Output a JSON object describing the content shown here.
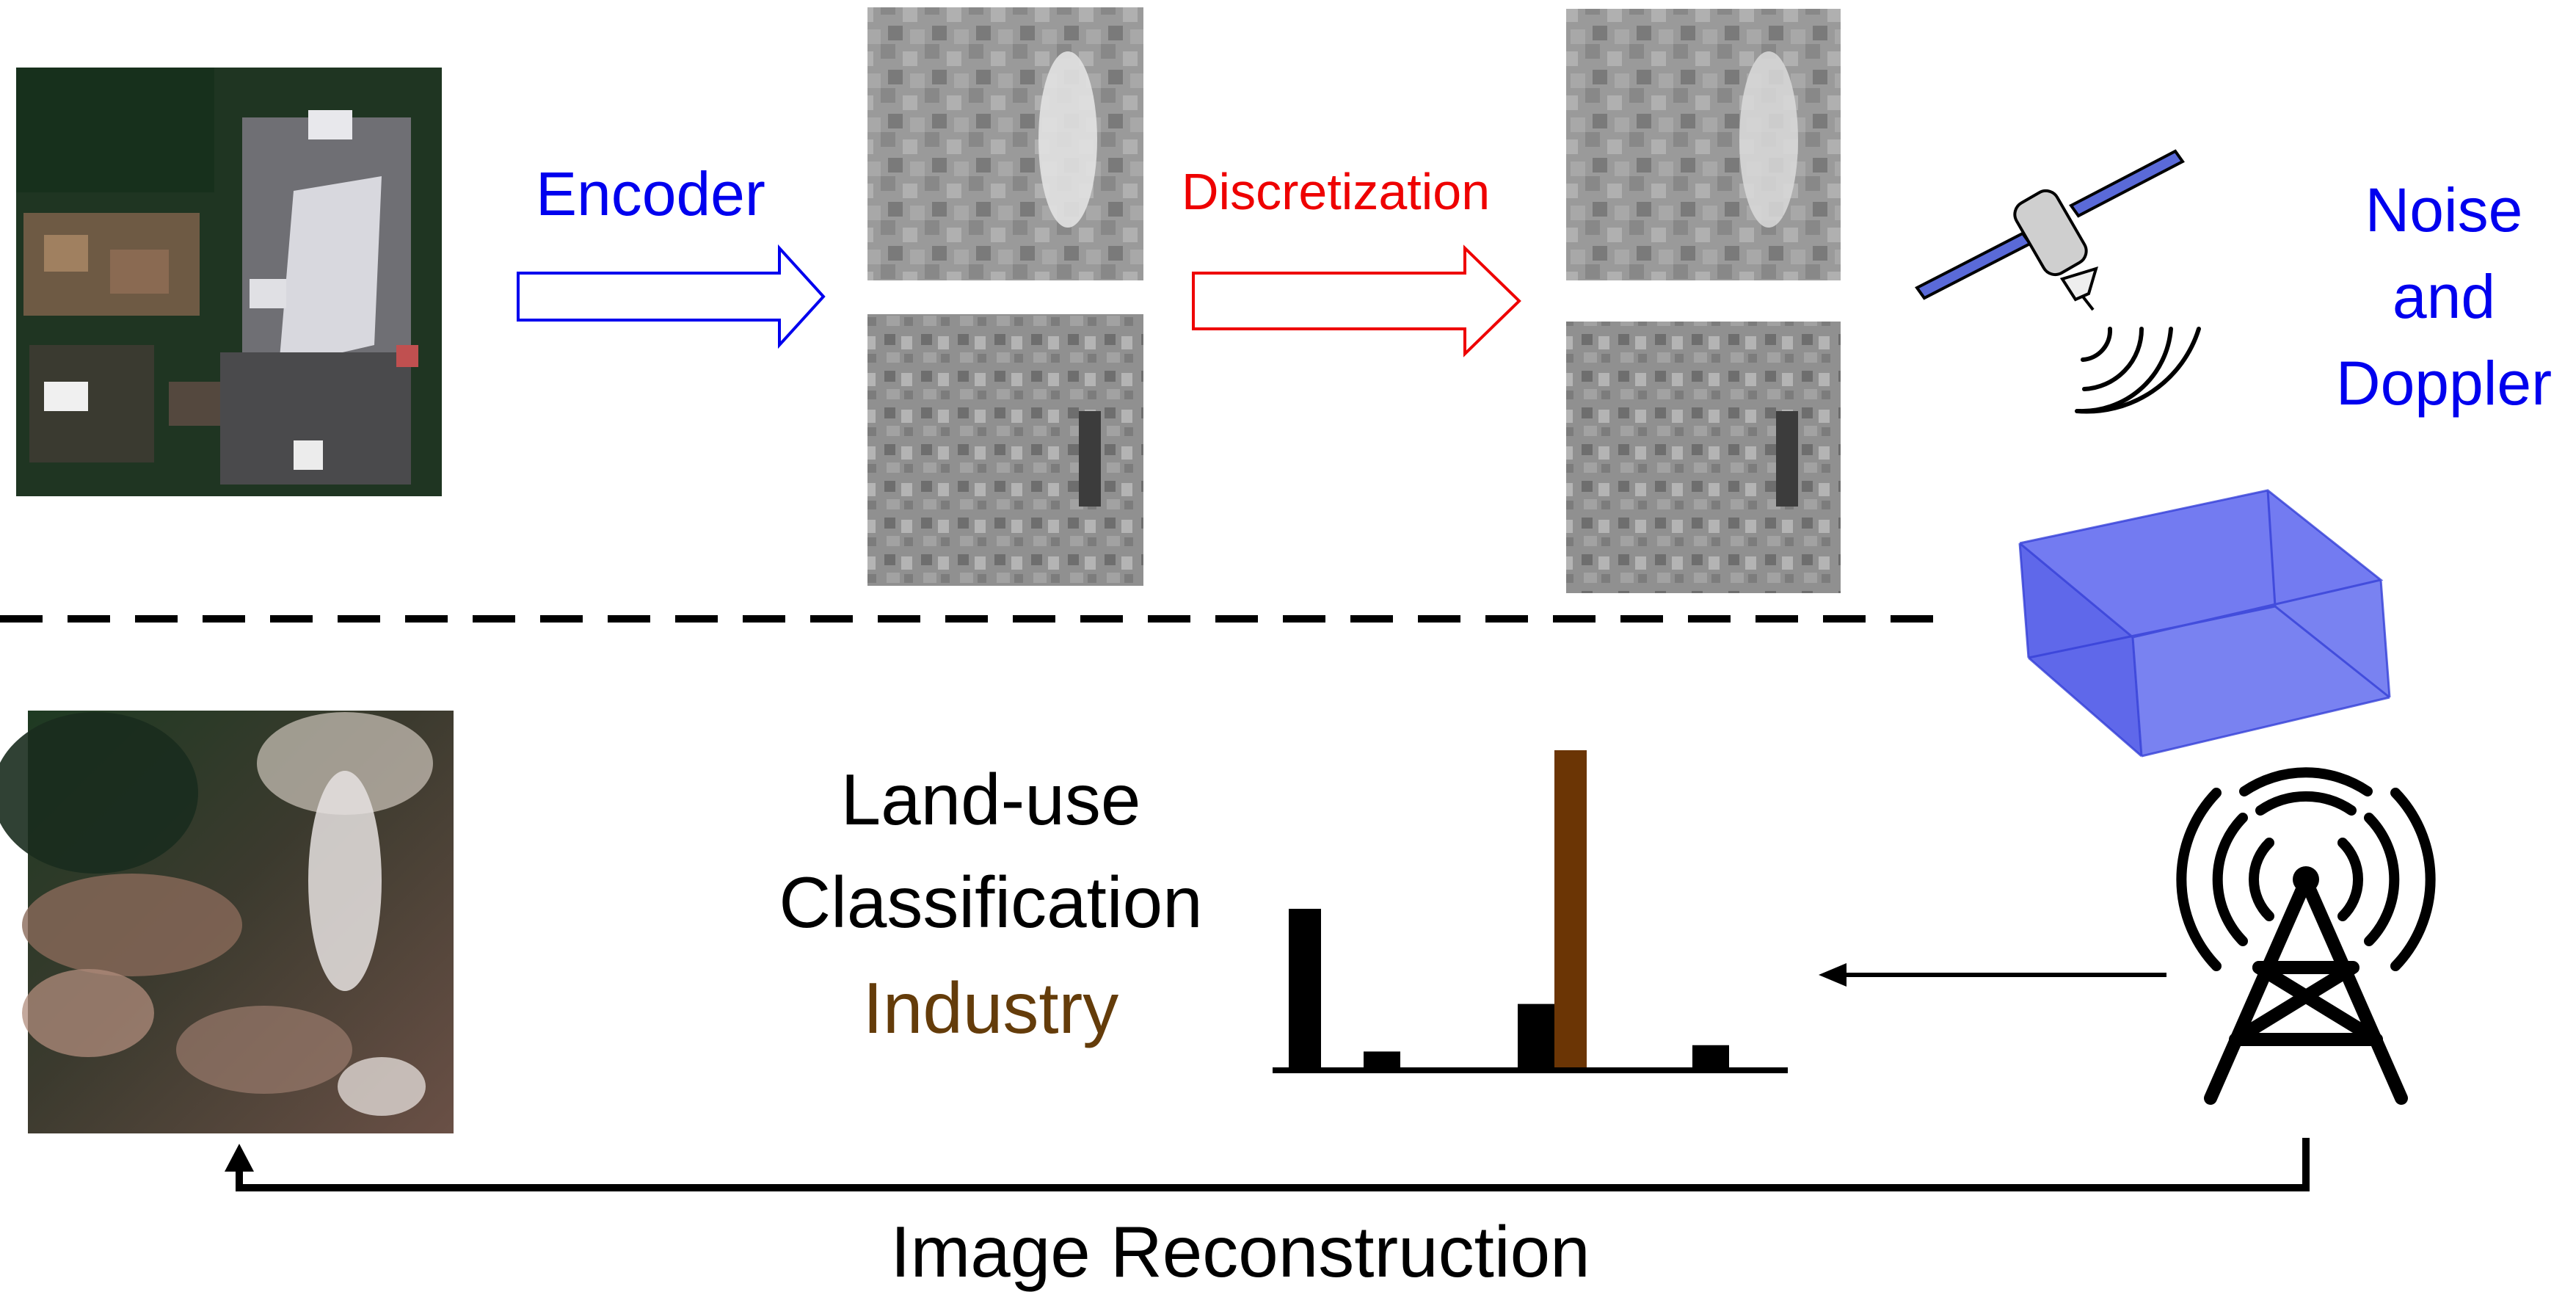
{
  "labels": {
    "encoder": "Encoder",
    "discretization": "Discretization",
    "noise_line1": "Noise",
    "noise_line2": "and",
    "noise_line3": "Doppler",
    "classification_line1": "Land-use",
    "classification_line2": "Classification",
    "predicted_class": "Industry",
    "reconstruction": "Image Reconstruction"
  },
  "colors": {
    "encoder_arrow": "#0000ee",
    "discretization_arrow": "#ee0000",
    "predicted_class": "#643c0a",
    "channel_box": "#5a64ee",
    "bars": "#000000",
    "highlight_bar": "#6b3505"
  },
  "icons": {
    "satellite": "satellite-icon",
    "tower": "radio-tower-icon",
    "channel": "channel-box-icon"
  },
  "class_scores": {
    "values": [
      0.5,
      0.05,
      0.2,
      1.0,
      0.07
    ],
    "highlighted_index": 3
  }
}
